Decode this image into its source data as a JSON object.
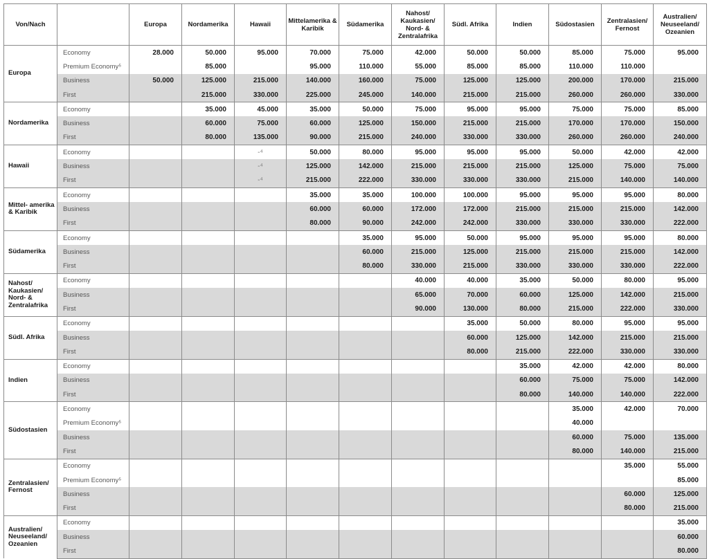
{
  "header": {
    "corner": "Von/Nach",
    "class_col": "",
    "destinations": [
      "Europa",
      "Nordamerika",
      "Hawaii",
      "Mittelamerika & Karibik",
      "Südamerika",
      "Nahost/ Kaukasien/ Nord- & Zentralafrika",
      "Südl. Afrika",
      "Indien",
      "Südostasien",
      "Zentralasien/ Fernost",
      "Australien/ Neuseeland/ Ozeanien"
    ]
  },
  "groups": [
    {
      "region": "Europa",
      "rows": [
        {
          "class": "Economy",
          "shaded": false,
          "values": [
            "28.000",
            "50.000",
            "95.000",
            "70.000",
            "75.000",
            "42.000",
            "50.000",
            "50.000",
            "85.000",
            "75.000",
            "95.000"
          ]
        },
        {
          "class": "Premium Economy⁵",
          "shaded": false,
          "values": [
            "",
            "85.000",
            "",
            "95.000",
            "110.000",
            "55.000",
            "85.000",
            "85.000",
            "110.000",
            "110.000",
            ""
          ]
        },
        {
          "class": "Business",
          "shaded": true,
          "values": [
            "50.000",
            "125.000",
            "215.000",
            "140.000",
            "160.000",
            "75.000",
            "125.000",
            "125.000",
            "200.000",
            "170.000",
            "215.000"
          ]
        },
        {
          "class": "First",
          "shaded": true,
          "values": [
            "",
            "215.000",
            "330.000",
            "225.000",
            "245.000",
            "140.000",
            "215.000",
            "215.000",
            "260.000",
            "260.000",
            "330.000"
          ]
        }
      ]
    },
    {
      "region": "Nordamerika",
      "rows": [
        {
          "class": "Economy",
          "shaded": false,
          "values": [
            "",
            "35.000",
            "45.000",
            "35.000",
            "50.000",
            "75.000",
            "95.000",
            "95.000",
            "75.000",
            "75.000",
            "85.000"
          ]
        },
        {
          "class": "Business",
          "shaded": true,
          "values": [
            "",
            "60.000",
            "75.000",
            "60.000",
            "125.000",
            "150.000",
            "215.000",
            "215.000",
            "170.000",
            "170.000",
            "150.000"
          ]
        },
        {
          "class": "First",
          "shaded": true,
          "values": [
            "",
            "80.000",
            "135.000",
            "90.000",
            "215.000",
            "240.000",
            "330.000",
            "330.000",
            "260.000",
            "260.000",
            "240.000"
          ]
        }
      ]
    },
    {
      "region": "Hawaii",
      "rows": [
        {
          "class": "Economy",
          "shaded": false,
          "values": [
            "",
            "",
            "-⁴",
            "50.000",
            "80.000",
            "95.000",
            "95.000",
            "95.000",
            "50.000",
            "42.000",
            "42.000"
          ]
        },
        {
          "class": "Business",
          "shaded": true,
          "values": [
            "",
            "",
            "-⁴",
            "125.000",
            "142.000",
            "215.000",
            "215.000",
            "215.000",
            "125.000",
            "75.000",
            "75.000"
          ]
        },
        {
          "class": "First",
          "shaded": true,
          "values": [
            "",
            "",
            "-⁴",
            "215.000",
            "222.000",
            "330.000",
            "330.000",
            "330.000",
            "215.000",
            "140.000",
            "140.000"
          ]
        }
      ]
    },
    {
      "region": "Mittel- amerika & Karibik",
      "rows": [
        {
          "class": "Economy",
          "shaded": false,
          "values": [
            "",
            "",
            "",
            "35.000",
            "35.000",
            "100.000",
            "100.000",
            "95.000",
            "95.000",
            "95.000",
            "80.000"
          ]
        },
        {
          "class": "Business",
          "shaded": true,
          "values": [
            "",
            "",
            "",
            "60.000",
            "60.000",
            "172.000",
            "172.000",
            "215.000",
            "215.000",
            "215.000",
            "142.000"
          ]
        },
        {
          "class": "First",
          "shaded": true,
          "values": [
            "",
            "",
            "",
            "80.000",
            "90.000",
            "242.000",
            "242.000",
            "330.000",
            "330.000",
            "330.000",
            "222.000"
          ]
        }
      ]
    },
    {
      "region": "Südamerika",
      "rows": [
        {
          "class": "Economy",
          "shaded": false,
          "values": [
            "",
            "",
            "",
            "",
            "35.000",
            "95.000",
            "50.000",
            "95.000",
            "95.000",
            "95.000",
            "80.000"
          ]
        },
        {
          "class": "Business",
          "shaded": true,
          "values": [
            "",
            "",
            "",
            "",
            "60.000",
            "215.000",
            "125.000",
            "215.000",
            "215.000",
            "215.000",
            "142.000"
          ]
        },
        {
          "class": "First",
          "shaded": true,
          "values": [
            "",
            "",
            "",
            "",
            "80.000",
            "330.000",
            "215.000",
            "330.000",
            "330.000",
            "330.000",
            "222.000"
          ]
        }
      ]
    },
    {
      "region": "Nahost/ Kaukasien/ Nord- & Zentralafrika",
      "rows": [
        {
          "class": "Economy",
          "shaded": false,
          "values": [
            "",
            "",
            "",
            "",
            "",
            "40.000",
            "40.000",
            "35.000",
            "50.000",
            "80.000",
            "95.000"
          ]
        },
        {
          "class": "Business",
          "shaded": true,
          "values": [
            "",
            "",
            "",
            "",
            "",
            "65.000",
            "70.000",
            "60.000",
            "125.000",
            "142.000",
            "215.000"
          ]
        },
        {
          "class": "First",
          "shaded": true,
          "values": [
            "",
            "",
            "",
            "",
            "",
            "90.000",
            "130.000",
            "80.000",
            "215.000",
            "222.000",
            "330.000"
          ]
        }
      ]
    },
    {
      "region": "Südl. Afrika",
      "rows": [
        {
          "class": "Economy",
          "shaded": false,
          "values": [
            "",
            "",
            "",
            "",
            "",
            "",
            "35.000",
            "50.000",
            "80.000",
            "95.000",
            "95.000"
          ]
        },
        {
          "class": "Business",
          "shaded": true,
          "values": [
            "",
            "",
            "",
            "",
            "",
            "",
            "60.000",
            "125.000",
            "142.000",
            "215.000",
            "215.000"
          ]
        },
        {
          "class": "First",
          "shaded": true,
          "values": [
            "",
            "",
            "",
            "",
            "",
            "",
            "80.000",
            "215.000",
            "222.000",
            "330.000",
            "330.000"
          ]
        }
      ]
    },
    {
      "region": "Indien",
      "rows": [
        {
          "class": "Economy",
          "shaded": false,
          "values": [
            "",
            "",
            "",
            "",
            "",
            "",
            "",
            "35.000",
            "42.000",
            "42.000",
            "80.000"
          ]
        },
        {
          "class": "Business",
          "shaded": true,
          "values": [
            "",
            "",
            "",
            "",
            "",
            "",
            "",
            "60.000",
            "75.000",
            "75.000",
            "142.000"
          ]
        },
        {
          "class": "First",
          "shaded": true,
          "values": [
            "",
            "",
            "",
            "",
            "",
            "",
            "",
            "80.000",
            "140.000",
            "140.000",
            "222.000"
          ]
        }
      ]
    },
    {
      "region": "Südostasien",
      "rows": [
        {
          "class": "Economy",
          "shaded": false,
          "values": [
            "",
            "",
            "",
            "",
            "",
            "",
            "",
            "",
            "35.000",
            "42.000",
            "70.000"
          ]
        },
        {
          "class": "Premium Economy⁵",
          "shaded": false,
          "values": [
            "",
            "",
            "",
            "",
            "",
            "",
            "",
            "",
            "40.000",
            "",
            ""
          ]
        },
        {
          "class": "Business",
          "shaded": true,
          "values": [
            "",
            "",
            "",
            "",
            "",
            "",
            "",
            "",
            "60.000",
            "75.000",
            "135.000"
          ]
        },
        {
          "class": "First",
          "shaded": true,
          "values": [
            "",
            "",
            "",
            "",
            "",
            "",
            "",
            "",
            "80.000",
            "140.000",
            "215.000"
          ]
        }
      ]
    },
    {
      "region": "Zentralasien/ Fernost",
      "rows": [
        {
          "class": "Economy",
          "shaded": false,
          "values": [
            "",
            "",
            "",
            "",
            "",
            "",
            "",
            "",
            "",
            "35.000",
            "55.000"
          ]
        },
        {
          "class": "Premium Economy⁵",
          "shaded": false,
          "values": [
            "",
            "",
            "",
            "",
            "",
            "",
            "",
            "",
            "",
            "",
            "85.000"
          ]
        },
        {
          "class": "Business",
          "shaded": true,
          "values": [
            "",
            "",
            "",
            "",
            "",
            "",
            "",
            "",
            "",
            "60.000",
            "125.000"
          ]
        },
        {
          "class": "First",
          "shaded": true,
          "values": [
            "",
            "",
            "",
            "",
            "",
            "",
            "",
            "",
            "",
            "80.000",
            "215.000"
          ]
        }
      ]
    },
    {
      "region": "Australien/ Neuseeland/ Ozeanien",
      "rows": [
        {
          "class": "Economy",
          "shaded": false,
          "values": [
            "",
            "",
            "",
            "",
            "",
            "",
            "",
            "",
            "",
            "",
            "35.000"
          ]
        },
        {
          "class": "Business",
          "shaded": true,
          "values": [
            "",
            "",
            "",
            "",
            "",
            "",
            "",
            "",
            "",
            "",
            "60.000"
          ]
        },
        {
          "class": "First",
          "shaded": true,
          "values": [
            "",
            "",
            "",
            "",
            "",
            "",
            "",
            "",
            "",
            "",
            "80.000"
          ]
        }
      ]
    }
  ],
  "colors": {
    "shade": "#d9d9d9",
    "border": "#8a8a8a"
  }
}
